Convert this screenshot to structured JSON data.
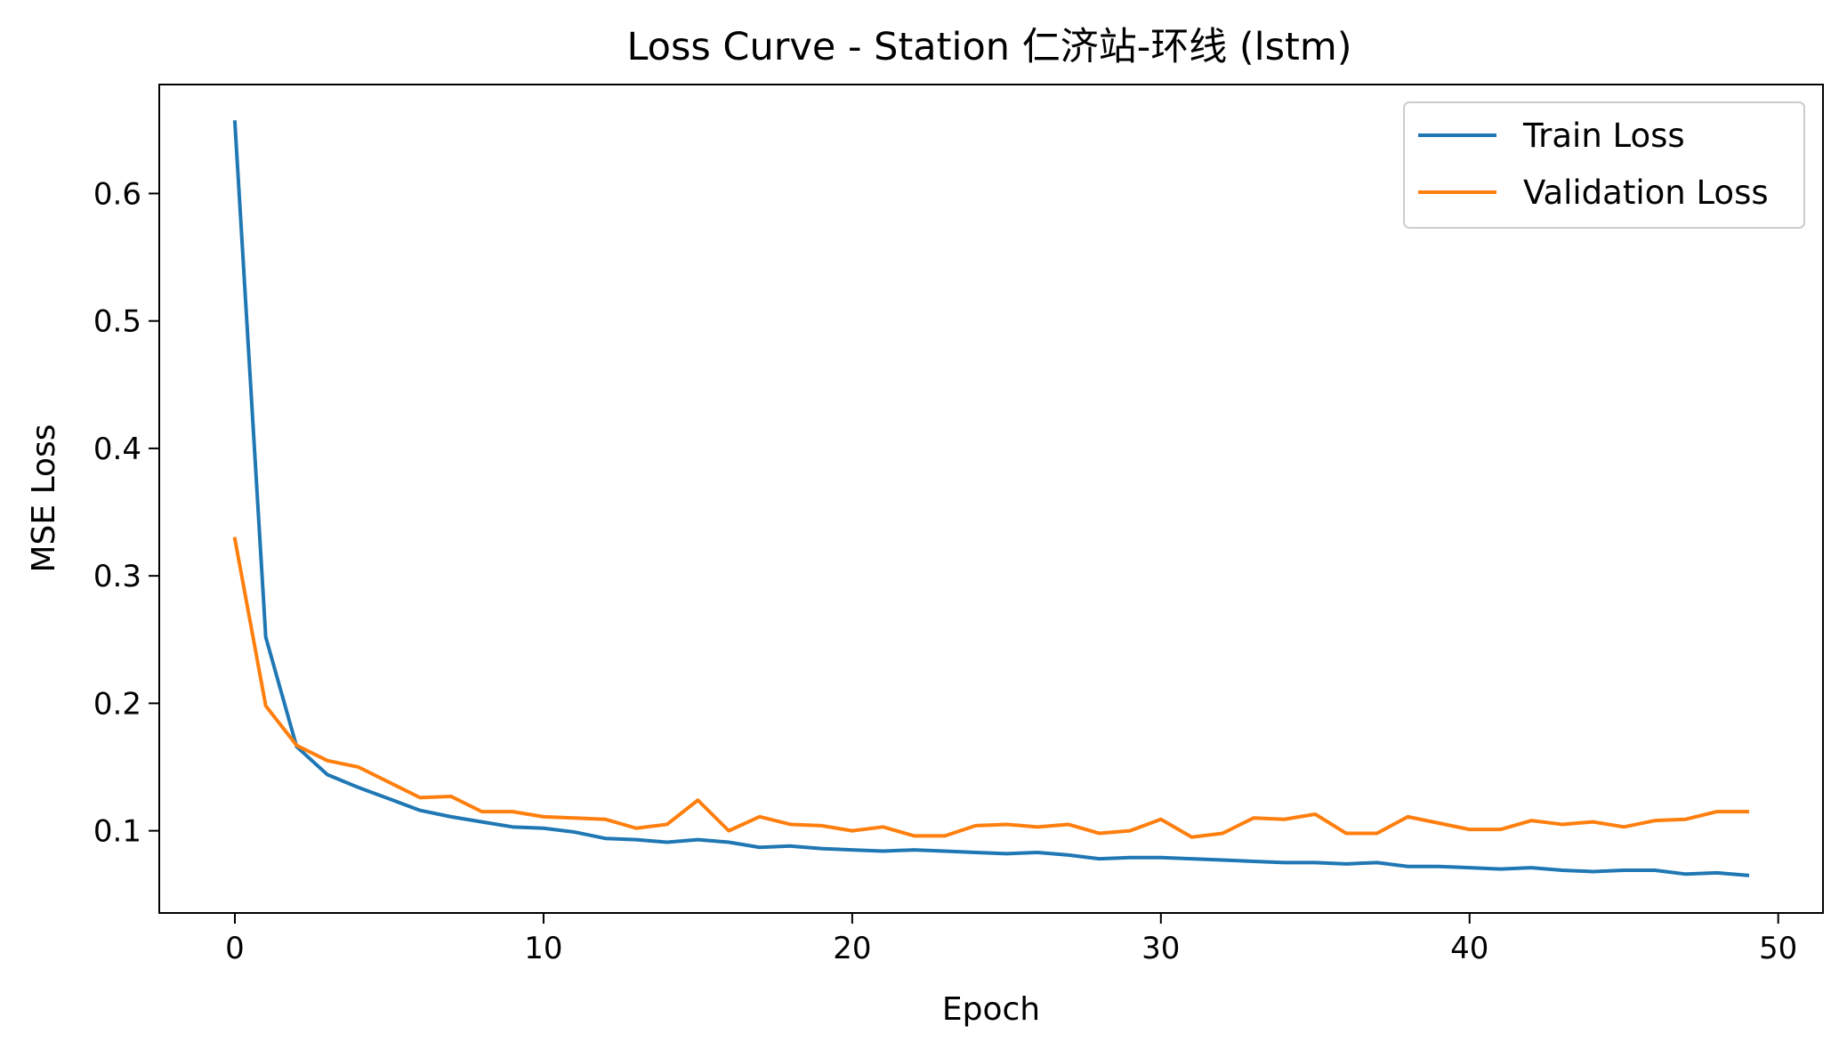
{
  "chart_data": {
    "type": "line",
    "title": "Loss Curve - Station 仁济站-环线 (lstm)",
    "xlabel": "Epoch",
    "ylabel": "MSE Loss",
    "xlim": [
      -2.45,
      51.45
    ],
    "ylim": [
      0.0355,
      0.6855
    ],
    "xticks": [
      0,
      10,
      20,
      30,
      40,
      50
    ],
    "xtick_labels": [
      "0",
      "10",
      "20",
      "30",
      "40",
      "50"
    ],
    "yticks": [
      0.1,
      0.2,
      0.3,
      0.4,
      0.5,
      0.6
    ],
    "ytick_labels": [
      "0.1",
      "0.2",
      "0.3",
      "0.4",
      "0.5",
      "0.6"
    ],
    "grid": false,
    "legend_position": "top-right",
    "x": [
      0,
      1,
      2,
      3,
      4,
      5,
      6,
      7,
      8,
      9,
      10,
      11,
      12,
      13,
      14,
      15,
      16,
      17,
      18,
      19,
      20,
      21,
      22,
      23,
      24,
      25,
      26,
      27,
      28,
      29,
      30,
      31,
      32,
      33,
      34,
      35,
      36,
      37,
      38,
      39,
      40,
      41,
      42,
      43,
      44,
      45,
      46,
      47,
      48,
      49
    ],
    "series": [
      {
        "name": "Train Loss",
        "color": "#1f77b4",
        "values": [
          0.656,
          0.252,
          0.166,
          0.144,
          0.134,
          0.125,
          0.116,
          0.111,
          0.107,
          0.103,
          0.102,
          0.099,
          0.094,
          0.093,
          0.091,
          0.093,
          0.091,
          0.087,
          0.088,
          0.086,
          0.085,
          0.084,
          0.085,
          0.084,
          0.083,
          0.082,
          0.083,
          0.081,
          0.078,
          0.079,
          0.079,
          0.078,
          0.077,
          0.076,
          0.075,
          0.075,
          0.074,
          0.075,
          0.072,
          0.072,
          0.071,
          0.07,
          0.071,
          0.069,
          0.068,
          0.069,
          0.069,
          0.066,
          0.067,
          0.065
        ]
      },
      {
        "name": "Validation Loss",
        "color": "#ff7f0e",
        "values": [
          0.329,
          0.198,
          0.167,
          0.155,
          0.15,
          0.138,
          0.126,
          0.127,
          0.115,
          0.115,
          0.111,
          0.11,
          0.109,
          0.102,
          0.105,
          0.124,
          0.1,
          0.111,
          0.105,
          0.104,
          0.1,
          0.103,
          0.096,
          0.096,
          0.104,
          0.105,
          0.103,
          0.105,
          0.098,
          0.1,
          0.109,
          0.095,
          0.098,
          0.11,
          0.109,
          0.113,
          0.098,
          0.098,
          0.111,
          0.106,
          0.101,
          0.101,
          0.108,
          0.105,
          0.107,
          0.103,
          0.108,
          0.109,
          0.115,
          0.115
        ]
      }
    ]
  }
}
